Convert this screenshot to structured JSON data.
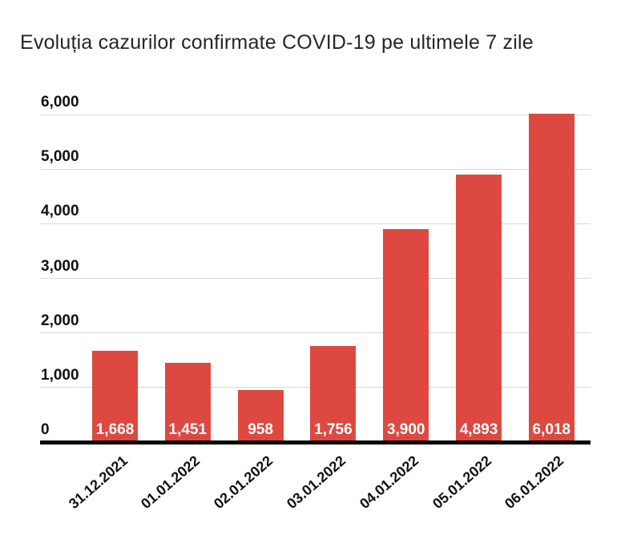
{
  "title": "Evoluția cazurilor confirmate COVID-19 pe ultimele 7 zile",
  "chart_data": {
    "type": "bar",
    "title": "Evoluția cazurilor confirmate COVID-19 pe ultimele 7 zile",
    "categories": [
      "31.12.2021",
      "01.01.2022",
      "02.01.2022",
      "03.01.2022",
      "04.01.2022",
      "05.01.2022",
      "06.01.2022"
    ],
    "values": [
      1668,
      1451,
      958,
      1756,
      3900,
      4893,
      6018
    ],
    "value_labels": [
      "1,668",
      "1,451",
      "958",
      "1,756",
      "3,900",
      "4,893",
      "6,018"
    ],
    "xlabel": "",
    "ylabel": "",
    "ylim": [
      0,
      6000
    ],
    "yticks": [
      {
        "value": 0,
        "label": "0"
      },
      {
        "value": 1000,
        "label": "1,000"
      },
      {
        "value": 2000,
        "label": "2,000"
      },
      {
        "value": 3000,
        "label": "3,000"
      },
      {
        "value": 4000,
        "label": "4,000"
      },
      {
        "value": 5000,
        "label": "5,000"
      },
      {
        "value": 6000,
        "label": "6,000"
      }
    ],
    "grid": true,
    "legend": "none",
    "colors": {
      "bar": "#dd4940",
      "gridline": "#d9d9d9",
      "axis_line": "#000000",
      "value_label": "#ffffff",
      "tick_label": "#111111",
      "title": "#24262b",
      "background": "#ffffff"
    }
  }
}
